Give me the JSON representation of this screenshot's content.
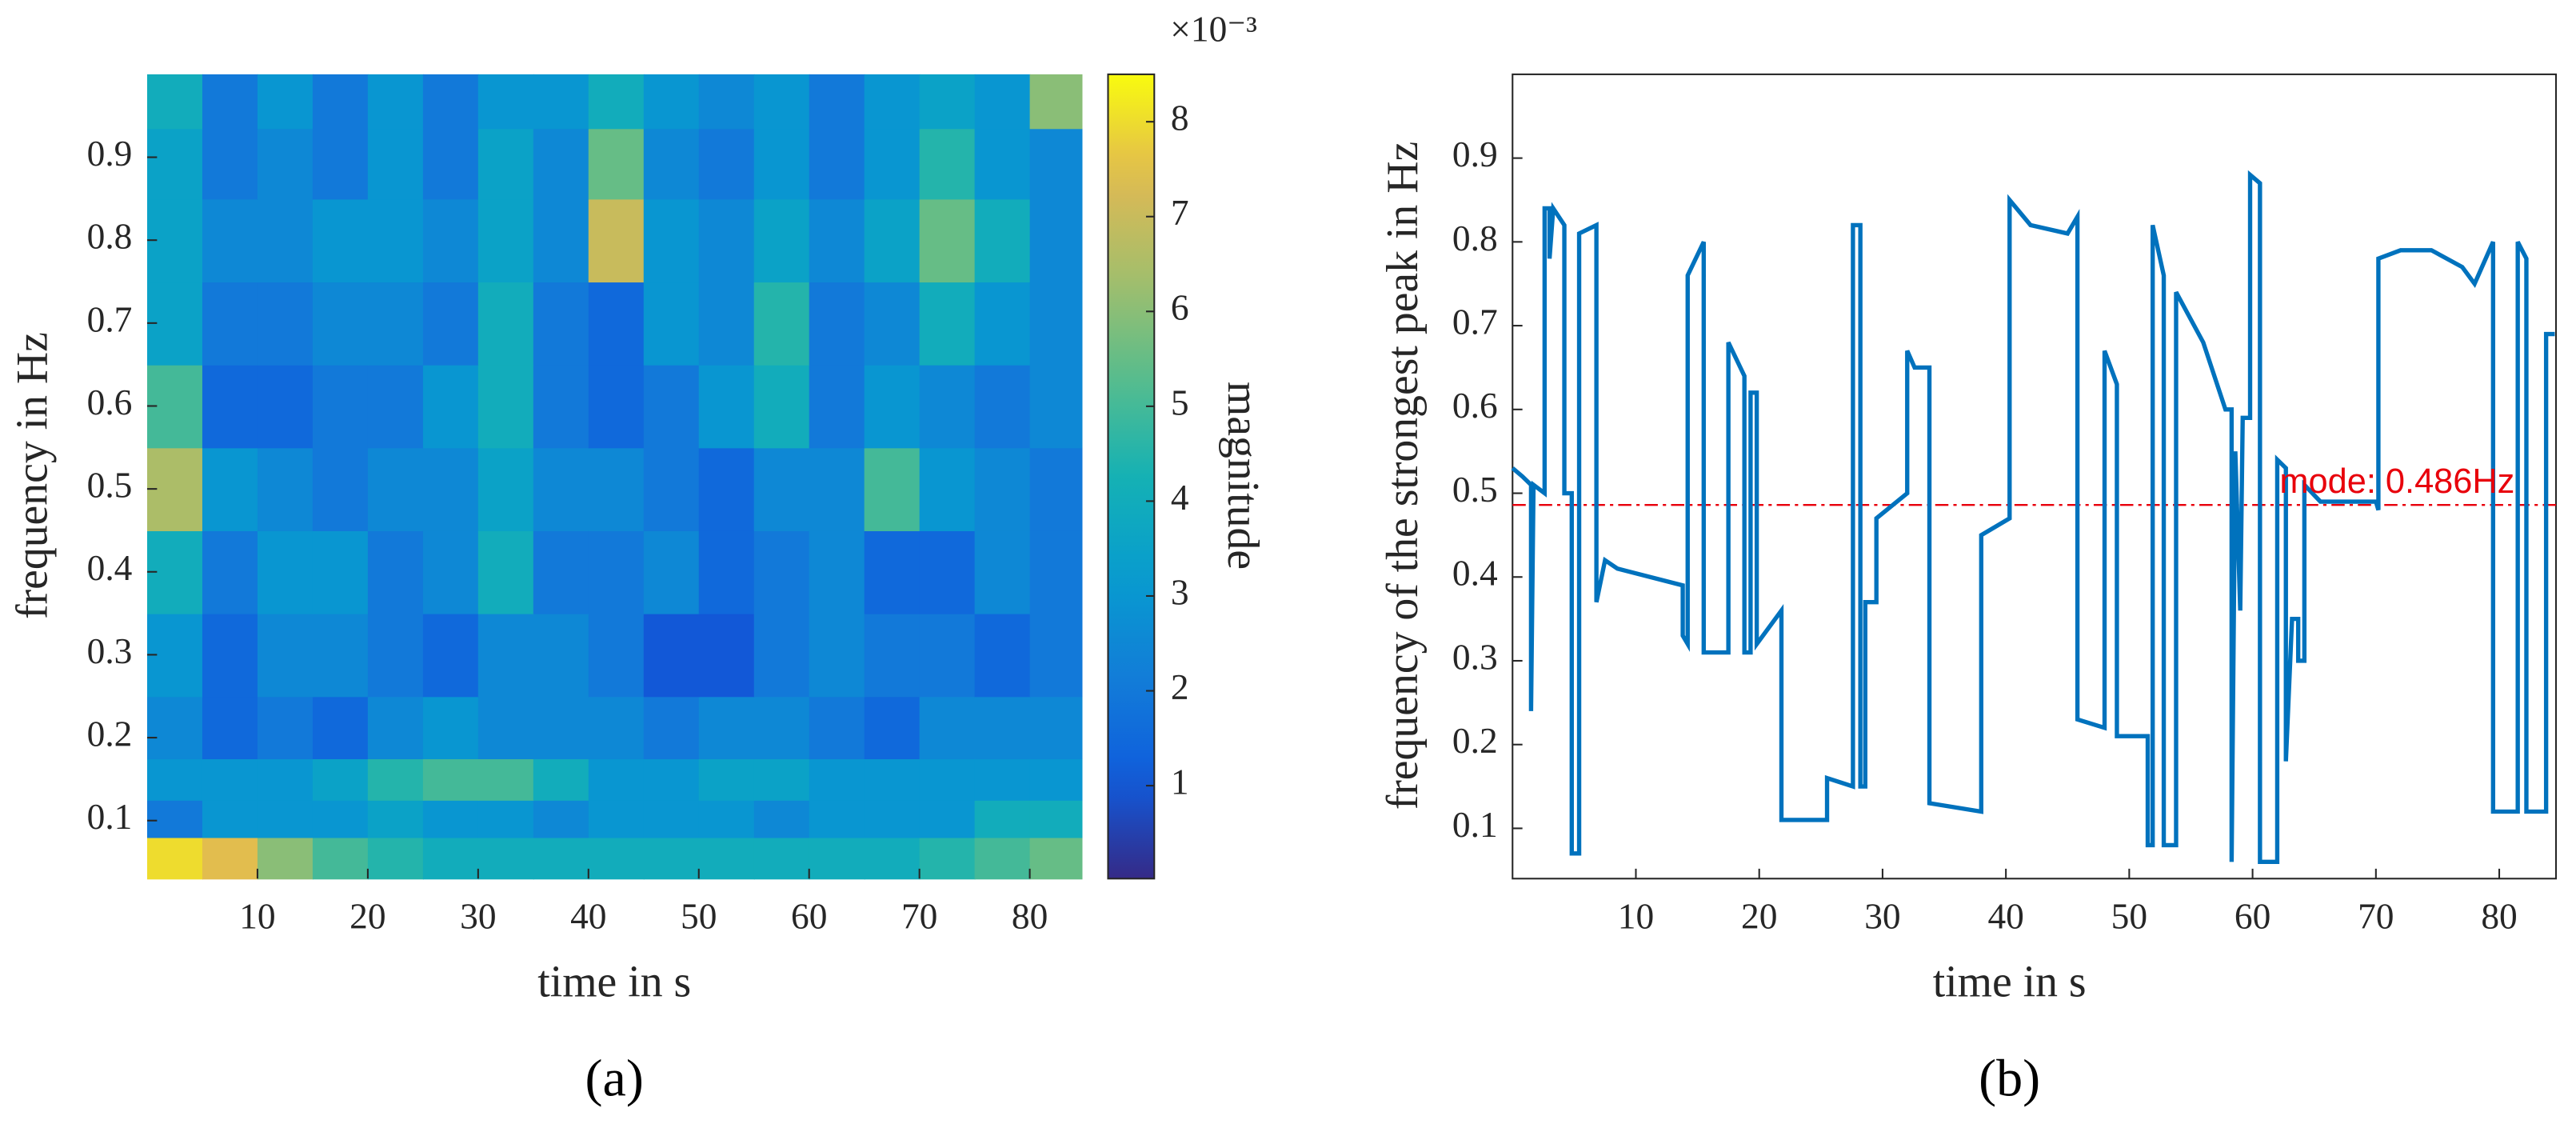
{
  "chart_data": [
    {
      "type": "heatmap",
      "label": "(a)",
      "x_label": "time in s",
      "y_label": "frequency in Hz",
      "colormap": "parula",
      "x": [
        2.5,
        7.5,
        12.5,
        17.5,
        22.5,
        27.5,
        32.5,
        37.5,
        42.5,
        47.5,
        52.5,
        57.5,
        62.5,
        67.5,
        72.5,
        77.5,
        82.5
      ],
      "y": [
        0.06,
        0.1,
        0.15,
        0.2,
        0.3,
        0.4,
        0.5,
        0.6,
        0.7,
        0.8,
        0.9,
        0.97
      ],
      "values": [
        [
          8,
          7.5,
          6,
          5,
          4.5,
          4,
          4,
          4,
          4,
          4,
          4,
          4,
          4,
          4,
          4.5,
          5,
          5.5
        ],
        [
          2,
          3,
          3,
          3,
          3.5,
          3,
          3,
          2.5,
          3,
          3,
          3,
          2.5,
          3,
          3,
          3,
          4,
          4
        ],
        [
          3,
          3,
          3,
          3.5,
          4.5,
          5,
          5,
          4,
          3,
          3,
          3.5,
          3.5,
          3,
          3,
          3,
          3,
          3
        ],
        [
          2.5,
          1.5,
          2,
          1.5,
          2.5,
          3,
          2.5,
          2.5,
          2.5,
          2,
          2.5,
          2.5,
          2,
          1.5,
          2.5,
          2.5,
          2.5
        ],
        [
          3,
          1.5,
          2.5,
          2.5,
          2,
          1.5,
          2.5,
          2.5,
          2,
          1,
          1,
          2,
          2.5,
          2,
          2,
          1.5,
          2
        ],
        [
          4,
          2,
          3,
          3,
          2,
          2.5,
          4,
          2,
          2,
          2.5,
          1.5,
          2,
          2.5,
          1.5,
          1.5,
          2.5,
          2
        ],
        [
          6.5,
          3,
          2.5,
          2,
          2.5,
          2.5,
          3.5,
          2.5,
          2.5,
          2,
          1.5,
          2.5,
          2.5,
          5,
          3,
          2.5,
          2
        ],
        [
          5,
          1.5,
          1.5,
          2,
          2,
          3,
          4,
          2,
          1.5,
          2,
          3,
          4,
          2,
          3,
          2.5,
          2,
          2.5
        ],
        [
          3.5,
          2,
          2,
          2.5,
          2.5,
          2,
          4,
          2,
          1.5,
          3,
          2.5,
          4.5,
          2,
          2.5,
          4,
          3,
          2.5
        ],
        [
          3.5,
          2.5,
          2.5,
          3,
          3,
          2.5,
          3.5,
          2.5,
          7,
          3,
          2.5,
          3.5,
          2.5,
          3.5,
          5.5,
          4,
          2.5
        ],
        [
          3.5,
          2,
          2.5,
          2,
          3,
          2,
          3.5,
          2.5,
          5.5,
          2.5,
          2,
          3,
          2,
          3,
          4.5,
          3,
          2.5
        ],
        [
          4,
          2,
          3,
          2,
          3,
          2,
          3,
          3,
          4,
          3,
          2.5,
          3,
          2,
          3,
          3.5,
          3,
          6
        ]
      ],
      "xlim": [
        0,
        84.7
      ],
      "ylim": [
        0.03,
        1.0
      ],
      "xticks": [
        10,
        20,
        30,
        40,
        50,
        60,
        70,
        80
      ],
      "yticks": [
        0.1,
        0.2,
        0.3,
        0.4,
        0.5,
        0.6,
        0.7,
        0.8,
        0.9
      ],
      "colorbar": {
        "label": "magnitude",
        "exponent": "×10⁻³",
        "clim": [
          0.02,
          8.5
        ],
        "ticks": [
          1,
          2,
          3,
          4,
          5,
          6,
          7,
          8
        ]
      }
    },
    {
      "type": "line",
      "label": "(b)",
      "x_label": "time in s",
      "y_label": "frequency of the strongest peak in Hz",
      "color": "#0072bd",
      "x": [
        0,
        0.8,
        1.5,
        1.5,
        1.7,
        2.6,
        2.6,
        3.0,
        3.0,
        3.3,
        4.2,
        4.2,
        4.8,
        4.8,
        5.4,
        5.4,
        6.8,
        6.8,
        7.5,
        8.5,
        13.8,
        13.8,
        14.2,
        14.2,
        15.5,
        15.5,
        17.5,
        17.5,
        18.8,
        18.8,
        19.3,
        19.3,
        19.8,
        19.8,
        21.8,
        21.8,
        25.5,
        25.5,
        27.6,
        27.6,
        28.2,
        28.2,
        28.6,
        28.6,
        29.5,
        29.5,
        32,
        32,
        32.6,
        33.8,
        33.8,
        38,
        38,
        40.3,
        40.3,
        42,
        45,
        45.8,
        45.8,
        48,
        48,
        49,
        49,
        51.5,
        51.5,
        51.9,
        51.9,
        52.8,
        52.8,
        53.8,
        53.8,
        56,
        57.8,
        58.3,
        58.3,
        58.6,
        59,
        59.2,
        59.8,
        59.8,
        60.6,
        60.6,
        62,
        62,
        62.7,
        62.7,
        63.2,
        63.7,
        63.7,
        64.2,
        64.2,
        65.5,
        70,
        70.2,
        70.2,
        72,
        74.5,
        77,
        78,
        79.5,
        79.5,
        81.5,
        81.5,
        82.2,
        82.2,
        83.8,
        83.8,
        84.5
      ],
      "values": [
        0.53,
        0.52,
        0.51,
        0.24,
        0.51,
        0.5,
        0.84,
        0.84,
        0.78,
        0.84,
        0.82,
        0.5,
        0.5,
        0.07,
        0.07,
        0.81,
        0.82,
        0.37,
        0.42,
        0.41,
        0.39,
        0.33,
        0.32,
        0.76,
        0.8,
        0.31,
        0.31,
        0.68,
        0.64,
        0.31,
        0.31,
        0.62,
        0.62,
        0.32,
        0.36,
        0.11,
        0.11,
        0.16,
        0.15,
        0.82,
        0.82,
        0.15,
        0.15,
        0.37,
        0.37,
        0.47,
        0.5,
        0.67,
        0.65,
        0.65,
        0.13,
        0.12,
        0.45,
        0.47,
        0.85,
        0.82,
        0.81,
        0.83,
        0.23,
        0.22,
        0.67,
        0.63,
        0.21,
        0.21,
        0.08,
        0.08,
        0.82,
        0.76,
        0.08,
        0.08,
        0.74,
        0.68,
        0.6,
        0.6,
        0.06,
        0.55,
        0.36,
        0.59,
        0.59,
        0.88,
        0.87,
        0.06,
        0.06,
        0.54,
        0.53,
        0.18,
        0.35,
        0.35,
        0.3,
        0.3,
        0.51,
        0.49,
        0.49,
        0.48,
        0.78,
        0.79,
        0.79,
        0.77,
        0.75,
        0.8,
        0.12,
        0.12,
        0.8,
        0.78,
        0.12,
        0.12,
        0.69,
        0.69
      ],
      "reference": {
        "value": 0.486,
        "label": "mode: 0.486Hz",
        "color": "#e8000b"
      },
      "xlim": [
        0,
        84.6
      ],
      "ylim": [
        0.04,
        1.0
      ],
      "xticks": [
        10,
        20,
        30,
        40,
        50,
        60,
        70,
        80
      ],
      "yticks": [
        0.1,
        0.2,
        0.3,
        0.4,
        0.5,
        0.6,
        0.7,
        0.8,
        0.9
      ]
    }
  ]
}
